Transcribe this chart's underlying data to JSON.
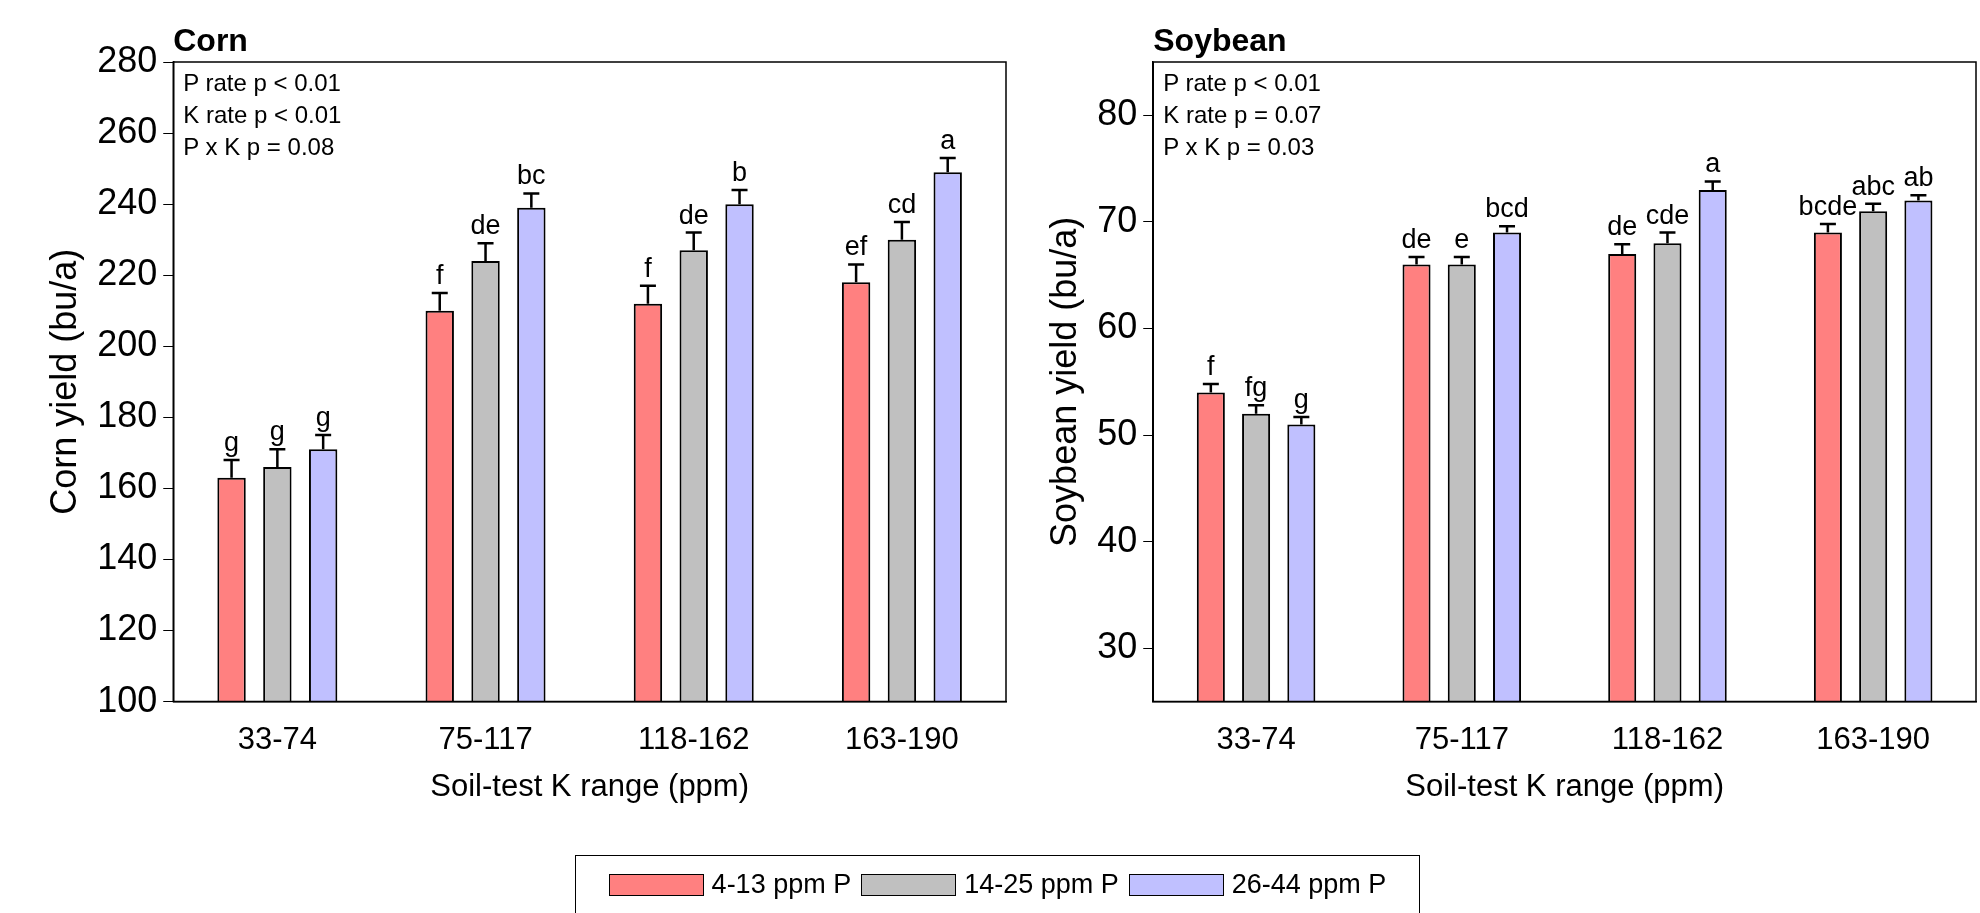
{
  "chart_data": [
    {
      "type": "bar",
      "title": "Corn",
      "xlabel": "Soil-test K range (ppm)",
      "ylabel": "Corn yield (bu/a)",
      "categories": [
        "33-74",
        "75-117",
        "118-162",
        "163-190"
      ],
      "series": [
        {
          "name": "4-13 ppm P",
          "color": "#ff8080",
          "values": [
            163,
            210,
            212,
            218
          ],
          "errors": [
            5,
            5,
            5,
            5
          ],
          "value_labels": [
            "g",
            "f",
            "f",
            "ef"
          ]
        },
        {
          "name": "14-25 ppm P",
          "color": "#c0c0c0",
          "values": [
            166,
            224,
            227,
            230
          ],
          "errors": [
            5,
            5,
            5,
            5
          ],
          "value_labels": [
            "g",
            "de",
            "de",
            "cd"
          ]
        },
        {
          "name": "26-44 ppm P",
          "color": "#c0c0ff",
          "values": [
            171,
            239,
            240,
            249
          ],
          "errors": [
            4,
            4,
            4,
            4
          ],
          "value_labels": [
            "g",
            "bc",
            "b",
            "a"
          ]
        }
      ],
      "ylim": [
        100,
        280
      ],
      "yticks": [
        100,
        120,
        140,
        160,
        180,
        200,
        220,
        240,
        260,
        280
      ],
      "annotations": [
        "P rate p < 0.01",
        "K rate p < 0.01",
        "P x K p = 0.08"
      ],
      "grid": false,
      "legend": "bottom"
    },
    {
      "type": "bar",
      "title": "Soybean",
      "xlabel": "Soil-test K range (ppm)",
      "ylabel": "Soybean yield (bu/a)",
      "categories": [
        "33-74",
        "75-117",
        "118-162",
        "163-190"
      ],
      "series": [
        {
          "color": "#ff8080",
          "values": [
            54,
            66,
            67,
            69
          ],
          "errors": [
            0.8,
            0.7,
            0.9,
            0.8
          ],
          "value_labels": [
            "f",
            "de",
            "de",
            "bcde"
          ]
        },
        {
          "color": "#c0c0c0",
          "values": [
            52,
            66,
            68,
            71
          ],
          "errors": [
            0.8,
            0.7,
            1,
            0.7
          ],
          "value_labels": [
            "fg",
            "e",
            "cde",
            "abc"
          ]
        },
        {
          "color": "#c0c0ff",
          "values": [
            51,
            69,
            73,
            72
          ],
          "errors": [
            0.7,
            0.6,
            0.8,
            0.5
          ],
          "value_labels": [
            "g",
            "bcd",
            "a",
            "ab"
          ]
        }
      ],
      "ylim": [
        25,
        85
      ],
      "yticks": [
        30,
        40,
        50,
        60,
        70,
        80
      ],
      "annotations": [
        "P rate p < 0.01",
        "K rate p = 0.07",
        "P x K p = 0.03"
      ],
      "grid": false
    }
  ]
}
